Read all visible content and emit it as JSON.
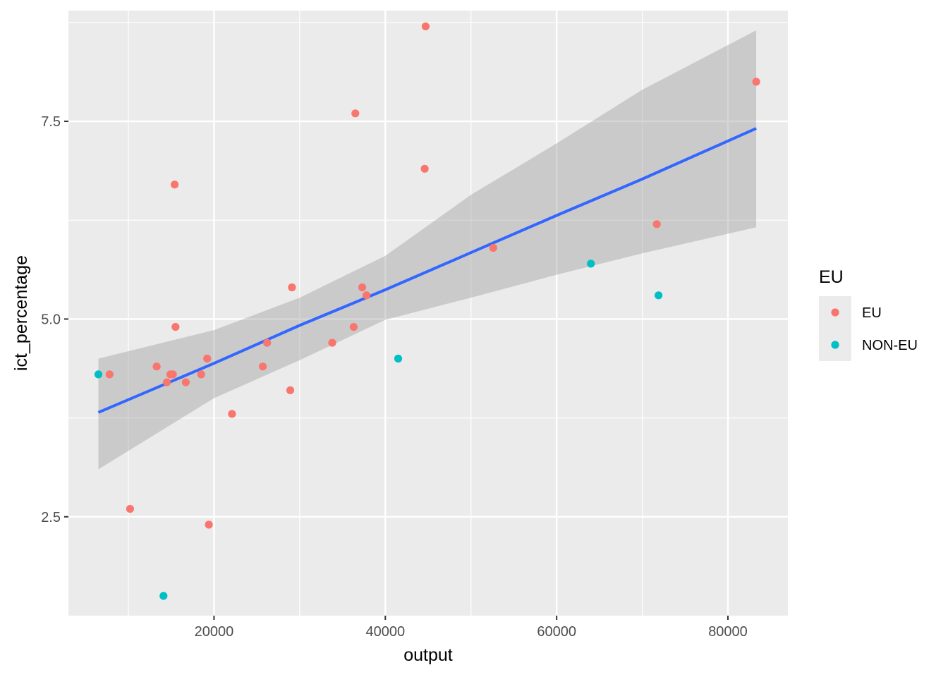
{
  "chart_data": {
    "type": "scatter",
    "xlabel": "output",
    "ylabel": "ict_percentage",
    "xlim": [
      3000,
      87000
    ],
    "ylim": [
      1.25,
      8.9
    ],
    "x_ticks": [
      20000,
      40000,
      60000,
      80000
    ],
    "x_tick_labels": [
      "20000",
      "40000",
      "60000",
      "80000"
    ],
    "y_ticks": [
      2.5,
      5.0,
      7.5
    ],
    "y_tick_labels": [
      "2.5",
      "5.0",
      "7.5"
    ],
    "grid": true,
    "legend": {
      "title": "EU",
      "placement": "right",
      "entries": [
        {
          "label": "EU",
          "color": "#F8766D"
        },
        {
          "label": "NON-EU",
          "color": "#00BFC4"
        }
      ]
    },
    "series": [
      {
        "name": "EU",
        "color": "#F8766D",
        "points": [
          [
            7800,
            4.3
          ],
          [
            10200,
            2.6
          ],
          [
            13300,
            4.4
          ],
          [
            14500,
            4.2
          ],
          [
            14900,
            4.3
          ],
          [
            15200,
            4.3
          ],
          [
            15400,
            6.7
          ],
          [
            15500,
            4.9
          ],
          [
            16700,
            4.2
          ],
          [
            18500,
            4.3
          ],
          [
            19200,
            4.5
          ],
          [
            19400,
            2.4
          ],
          [
            22100,
            3.8
          ],
          [
            25700,
            4.4
          ],
          [
            26200,
            4.7
          ],
          [
            28900,
            4.1
          ],
          [
            29100,
            5.4
          ],
          [
            33800,
            4.7
          ],
          [
            36300,
            4.9
          ],
          [
            36500,
            7.6
          ],
          [
            37300,
            5.4
          ],
          [
            37800,
            5.3
          ],
          [
            44600,
            6.9
          ],
          [
            44700,
            8.7
          ],
          [
            52600,
            5.9
          ],
          [
            71700,
            6.2
          ],
          [
            83300,
            8.0
          ]
        ]
      },
      {
        "name": "NON-EU",
        "color": "#00BFC4",
        "points": [
          [
            6500,
            4.3
          ],
          [
            14100,
            1.5
          ],
          [
            41500,
            4.5
          ],
          [
            64000,
            5.7
          ],
          [
            71900,
            5.3
          ]
        ]
      }
    ],
    "fit": {
      "method": "linear",
      "color": "#3366FF",
      "band_color": "#999999",
      "x": [
        6500,
        20000,
        30000,
        40000,
        50000,
        60000,
        70000,
        83300
      ],
      "y": [
        3.82,
        4.44,
        4.92,
        5.37,
        5.84,
        6.31,
        6.77,
        7.41
      ],
      "lower": [
        3.1,
        4.0,
        4.48,
        4.99,
        5.27,
        5.56,
        5.83,
        6.16
      ],
      "upper": [
        4.5,
        4.86,
        5.27,
        5.8,
        6.57,
        7.22,
        7.9,
        8.65
      ]
    }
  }
}
